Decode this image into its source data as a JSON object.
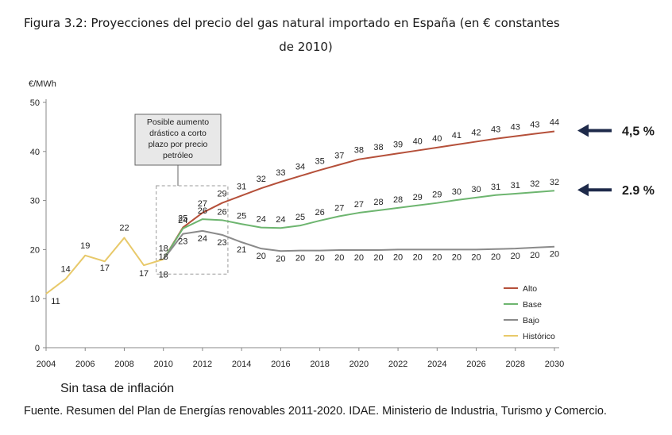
{
  "figure": {
    "title_line1": "Figura 3.2: Proyecciones del precio del gas natural importado en España (en € constantes",
    "title_line2": "de 2010)",
    "note": "Sin tasa de inflación",
    "source": "Fuente. Resumen del Plan de Energías renovables 2011-2020. IDAE. Ministerio de Industria, Turismo y Comercio."
  },
  "chart_data": {
    "type": "line",
    "ylabel": "€/MWh",
    "xlim": [
      2004,
      2030
    ],
    "ylim": [
      0,
      50
    ],
    "xticks": [
      "2004",
      "2006",
      "2008",
      "2010",
      "2012",
      "2014",
      "2016",
      "2018",
      "2020",
      "2022",
      "2024",
      "2026",
      "2028",
      "2030"
    ],
    "yticks": [
      "0",
      "10",
      "20",
      "30",
      "40",
      "50"
    ],
    "legend_position": "bottom-right",
    "annotation_box": {
      "text": [
        "Posible aumento",
        "drástico a corto",
        "plazo por precio",
        "petróleo"
      ],
      "dashed_region_x": [
        2010,
        2013.3
      ],
      "dashed_region_y": [
        15,
        33
      ]
    },
    "series": [
      {
        "name": "Alto",
        "color": "#b5503a",
        "x": [
          2010,
          2011,
          2012,
          2013,
          2014,
          2015,
          2016,
          2017,
          2018,
          2019,
          2020,
          2021,
          2022,
          2023,
          2024,
          2025,
          2026,
          2027,
          2028,
          2029,
          2030
        ],
        "values": [
          18,
          25,
          27,
          29,
          31,
          32,
          33,
          34,
          35,
          37,
          38,
          38,
          39,
          40,
          40,
          41,
          42,
          43,
          43,
          43,
          44
        ],
        "curve": [
          18,
          24.5,
          27.5,
          29.5,
          31,
          32.5,
          33.8,
          35,
          36.2,
          37.3,
          38.4,
          39,
          39.6,
          40.2,
          40.8,
          41.4,
          42,
          42.6,
          43.1,
          43.6,
          44.1
        ]
      },
      {
        "name": "Base",
        "color": "#6db56f",
        "x": [
          2010,
          2011,
          2012,
          2013,
          2014,
          2015,
          2016,
          2017,
          2018,
          2019,
          2020,
          2021,
          2022,
          2023,
          2024,
          2025,
          2026,
          2027,
          2028,
          2029,
          2030
        ],
        "values": [
          18,
          24,
          26,
          26,
          25,
          24,
          24,
          25,
          26,
          27,
          27,
          28,
          28,
          29,
          29,
          30,
          30,
          31,
          31,
          32,
          32
        ],
        "curve": [
          18,
          24.3,
          26.2,
          26,
          25.2,
          24.5,
          24.4,
          24.9,
          25.9,
          26.8,
          27.5,
          28,
          28.5,
          29,
          29.5,
          30.1,
          30.6,
          31.1,
          31.4,
          31.7,
          32
        ]
      },
      {
        "name": "Bajo",
        "color": "#8a8a8a",
        "x": [
          2010,
          2011,
          2012,
          2013,
          2014,
          2015,
          2016,
          2017,
          2018,
          2019,
          2020,
          2021,
          2022,
          2023,
          2024,
          2025,
          2026,
          2027,
          2028,
          2029,
          2030
        ],
        "values": [
          18,
          23,
          24,
          23,
          21,
          20,
          20,
          20,
          20,
          20,
          20,
          20,
          20,
          20,
          20,
          20,
          20,
          20,
          20,
          20,
          20
        ],
        "curve": [
          18,
          23.2,
          23.8,
          23,
          21.5,
          20.2,
          19.7,
          19.8,
          19.8,
          19.9,
          19.9,
          19.9,
          20,
          20,
          20,
          20,
          20,
          20.1,
          20.2,
          20.4,
          20.6
        ]
      },
      {
        "name": "Histórico",
        "color": "#e8c96a",
        "x": [
          2004,
          2005,
          2006,
          2007,
          2008,
          2009,
          2010
        ],
        "values": [
          11,
          14,
          19,
          17,
          22,
          17,
          18
        ],
        "curve": [
          11,
          14,
          18.8,
          17.6,
          22.4,
          16.8,
          18
        ]
      }
    ],
    "side_labels": [
      {
        "series": "Alto",
        "text": "4,5 %"
      },
      {
        "series": "Base",
        "text": "2.9 %"
      }
    ]
  }
}
